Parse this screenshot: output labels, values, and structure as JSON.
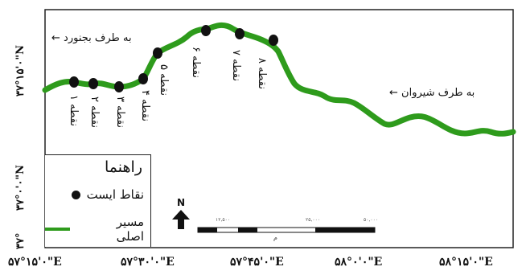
{
  "map": {
    "direction_north": "به طرف بجنورد",
    "direction_east": "به طرف شیروان",
    "stations": [
      {
        "label": "نقطه ۱"
      },
      {
        "label": "نقطه ۲"
      },
      {
        "label": "نقطه ۳"
      },
      {
        "label": "نقطه ۴"
      },
      {
        "label": "نقطه ۵"
      },
      {
        "label": "نقطه ۶"
      },
      {
        "label": "نقطه ۷"
      },
      {
        "label": "نقطه ۸"
      }
    ],
    "latitudes": [
      "۳۷°۱۵'۰\"N",
      "۳۷°۰'۰\"N",
      "۳۷°"
    ],
    "longitudes": [
      "۵۷°۱۵'۰\"E",
      "۵۷°۳۰'۰\"E",
      "۵۷°۴۵'۰\"E",
      "۵۸°۰'۰\"E",
      "۵۸°۱۵'۰\"E"
    ],
    "north_letter": "N",
    "scale_ticks": [
      "۱۲,۵۰۰",
      "۲۵,۰۰۰",
      "۵۰,۰۰۰"
    ],
    "scale_unit": "م"
  },
  "legend": {
    "title": "راهنما",
    "stops_label": "نقاط ایست",
    "route_label": "مسیر اصلی"
  },
  "colors": {
    "route": "#2e9b1c",
    "frame": "#222222"
  }
}
